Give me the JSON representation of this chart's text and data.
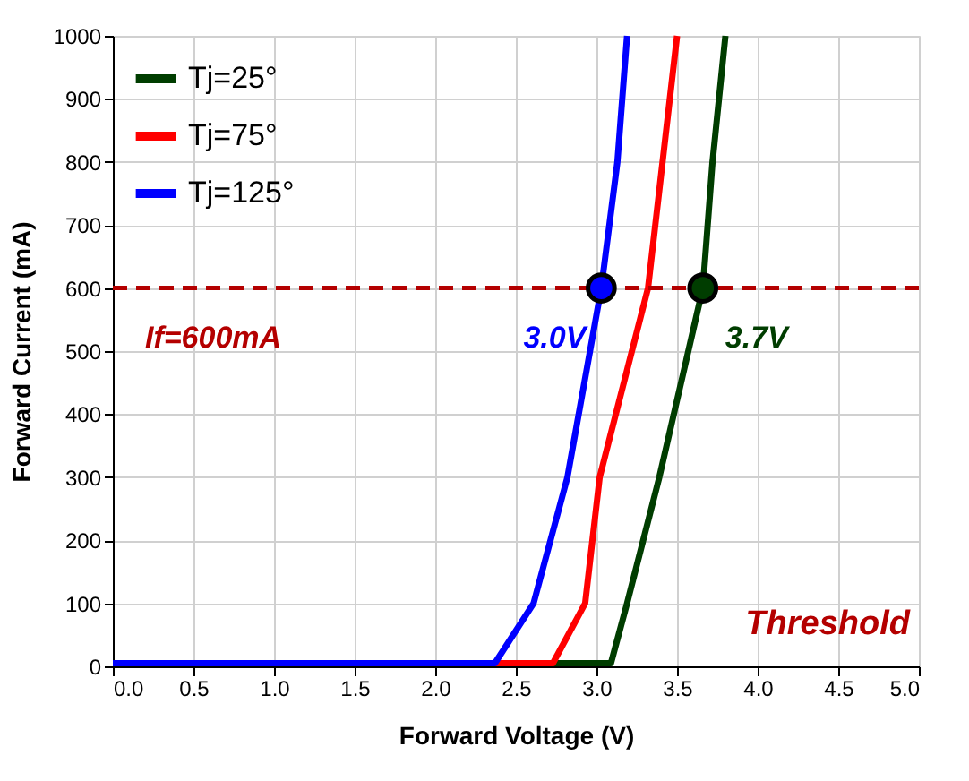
{
  "chart_data": {
    "type": "line",
    "xlabel": "Forward Voltage (V)",
    "ylabel": "Forward Current (mA)",
    "xlim": [
      0,
      5
    ],
    "ylim": [
      0,
      1000
    ],
    "xticks": [
      {
        "value": 0,
        "label": "0.0"
      },
      {
        "value": 0.5,
        "label": "0.5"
      },
      {
        "value": 1,
        "label": "1.0"
      },
      {
        "value": 1.5,
        "label": "1.5"
      },
      {
        "value": 2,
        "label": "2.0"
      },
      {
        "value": 2.5,
        "label": "2.5"
      },
      {
        "value": 3,
        "label": "3.0"
      },
      {
        "value": 3.5,
        "label": "3.5"
      },
      {
        "value": 4,
        "label": "4.0"
      },
      {
        "value": 4.5,
        "label": "4.5"
      },
      {
        "value": 5,
        "label": "5.0"
      }
    ],
    "yticks": [
      0,
      100,
      200,
      300,
      400,
      500,
      600,
      700,
      800,
      900,
      1000
    ],
    "grid": true,
    "legend": "top left",
    "line_style": "solid",
    "series": [
      {
        "name": "Tj=25°",
        "color": "#003d00",
        "x": [
          0,
          3.09,
          3.19,
          3.39,
          3.66,
          3.72,
          3.8
        ],
        "values": [
          5,
          5,
          100,
          300,
          600,
          800,
          1000
        ]
      },
      {
        "name": "Tj=75°",
        "color": "#ff0000",
        "x": [
          0,
          2.73,
          2.93,
          3.02,
          3.32,
          3.41,
          3.5
        ],
        "values": [
          5,
          5,
          100,
          300,
          600,
          800,
          1000
        ]
      },
      {
        "name": "Tj=125°",
        "color": "#0000ff",
        "x": [
          0,
          2.37,
          2.61,
          2.82,
          3.03,
          3.13,
          3.19
        ],
        "values": [
          5,
          5,
          100,
          300,
          600,
          800,
          1000
        ]
      },
      {
        "type": "scatter",
        "marker": "circle",
        "x": [
          3.03,
          3.66
        ],
        "values": [
          600,
          600
        ],
        "colors": [
          "#0000ff",
          "#003d00"
        ]
      }
    ],
    "ref_lines": [
      {
        "axis": "y",
        "value": 600,
        "label": "If=600mA",
        "color": "#b40000",
        "line_style": "dashed"
      }
    ],
    "annotations": [
      {
        "text": "3.0V",
        "x": 3.03,
        "y": 600
      },
      {
        "text": "3.7V",
        "x": 3.66,
        "y": 600
      },
      "Threshold"
    ]
  }
}
